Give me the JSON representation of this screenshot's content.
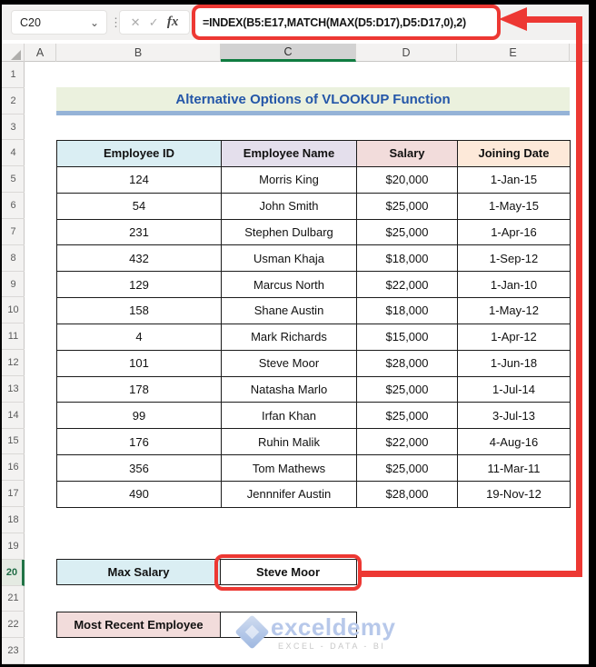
{
  "app": {
    "name_box_value": "C20",
    "formula": "=INDEX(B5:E17,MATCH(MAX(D5:D17),D5:D17,0),2)"
  },
  "icons": {
    "name_box_dropdown": "⌄",
    "more": "⋮",
    "cancel": "✕",
    "enter": "✓",
    "fx": "fx"
  },
  "grid": {
    "column_headers": [
      "A",
      "B",
      "C",
      "D",
      "E"
    ],
    "selected_column": "C",
    "row_headers": [
      "1",
      "2",
      "3",
      "4",
      "5",
      "6",
      "7",
      "8",
      "9",
      "10",
      "11",
      "12",
      "13",
      "14",
      "15",
      "16",
      "17",
      "18",
      "19",
      "20",
      "21",
      "22",
      "23"
    ],
    "selected_row": "20"
  },
  "sheet": {
    "title": "Alternative Options of VLOOKUP Function",
    "table": {
      "headers": [
        "Employee ID",
        "Employee Name",
        "Salary",
        "Joining Date"
      ],
      "rows": [
        [
          "124",
          "Morris King",
          "$20,000",
          "1-Jan-15"
        ],
        [
          "54",
          "John Smith",
          "$25,000",
          "1-May-15"
        ],
        [
          "231",
          "Stephen Dulbarg",
          "$25,000",
          "1-Apr-16"
        ],
        [
          "432",
          "Usman Khaja",
          "$18,000",
          "1-Sep-12"
        ],
        [
          "129",
          "Marcus North",
          "$22,000",
          "1-Jan-10"
        ],
        [
          "158",
          "Shane Austin",
          "$18,000",
          "1-May-12"
        ],
        [
          "4",
          "Mark Richards",
          "$15,000",
          "1-Apr-12"
        ],
        [
          "101",
          "Steve Moor",
          "$28,000",
          "1-Jun-18"
        ],
        [
          "178",
          "Natasha Marlo",
          "$25,000",
          "1-Jul-14"
        ],
        [
          "99",
          "Irfan Khan",
          "$25,000",
          "3-Jul-13"
        ],
        [
          "176",
          "Ruhin Malik",
          "$22,000",
          "4-Aug-16"
        ],
        [
          "356",
          "Tom Mathews",
          "$25,000",
          "11-Mar-11"
        ],
        [
          "490",
          "Jennnifer Austin",
          "$28,000",
          "19-Nov-12"
        ]
      ]
    },
    "summary": {
      "max_salary_label": "Max Salary",
      "max_salary_value": "Steve Moor",
      "recent_employee_label": "Most Recent Employee",
      "recent_employee_value": ""
    }
  },
  "watermark": {
    "brand": "exceldemy",
    "tagline": "EXCEL - DATA - BI"
  },
  "colors": {
    "accent_red": "#ED3833",
    "excel_green": "#107C41",
    "title_text": "#2456A8",
    "title_bg": "#EBF1DE",
    "title_underline": "#95B3D7",
    "header_employee_id": "#DAEEF3",
    "header_employee_name": "#E4DFEC",
    "header_salary": "#F2DCDB",
    "header_joining_date": "#FDE9D9",
    "max_salary_bg": "#DAEEF3",
    "recent_employee_bg": "#F2DCDB"
  }
}
